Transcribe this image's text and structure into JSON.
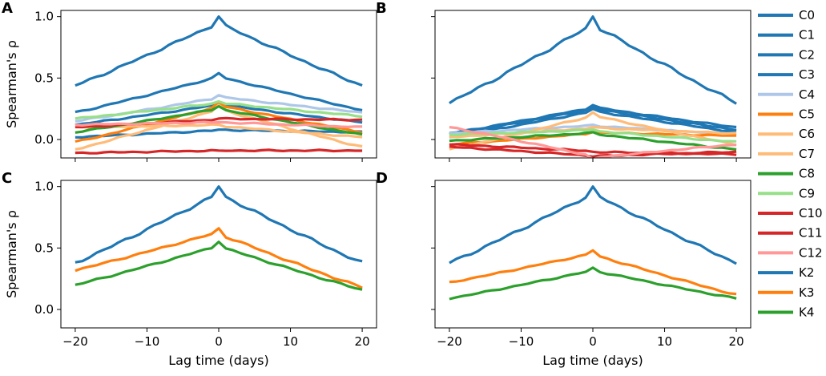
{
  "colors": {
    "blue": "#1f77b4",
    "light_blue": "#aec7e8",
    "orange": "#ff7f0e",
    "light_orange": "#ffbb78",
    "green": "#2ca02c",
    "light_green": "#98df8a",
    "red": "#d62728",
    "pink": "#ff9896"
  },
  "legend": [
    {
      "label": "C0",
      "color": "#1f77b4"
    },
    {
      "label": "C1",
      "color": "#1f77b4"
    },
    {
      "label": "C2",
      "color": "#1f77b4"
    },
    {
      "label": "C3",
      "color": "#1f77b4"
    },
    {
      "label": "C4",
      "color": "#aec7e8"
    },
    {
      "label": "C5",
      "color": "#ff7f0e"
    },
    {
      "label": "C6",
      "color": "#ffbb78"
    },
    {
      "label": "C7",
      "color": "#ffbb78"
    },
    {
      "label": "C8",
      "color": "#2ca02c"
    },
    {
      "label": "C9",
      "color": "#98df8a"
    },
    {
      "label": "C10",
      "color": "#d62728"
    },
    {
      "label": "C11",
      "color": "#d62728"
    },
    {
      "label": "C12",
      "color": "#ff9896"
    },
    {
      "label": "K2",
      "color": "#1f77b4"
    },
    {
      "label": "K3",
      "color": "#ff7f0e"
    },
    {
      "label": "K4",
      "color": "#2ca02c"
    }
  ],
  "chart_data": [
    {
      "panel": "A",
      "type": "line",
      "xlabel": "",
      "ylabel": "Spearman's ρ",
      "xlim": [
        -22,
        22
      ],
      "ylim": [
        -0.15,
        1.05
      ],
      "xticks": [
        -20,
        -10,
        0,
        10,
        20
      ],
      "xtick_labels": [
        "",
        "",
        "",
        "",
        ""
      ],
      "yticks": [
        0.0,
        0.5,
        1.0
      ],
      "ytick_labels": [
        "0.0",
        "0.5",
        "1.0"
      ],
      "series": [
        {
          "name": "C0",
          "color": "#1f77b4",
          "peak": 1.0,
          "left": 0.44,
          "right": 0.44,
          "shape": "peak"
        },
        {
          "name": "C1",
          "color": "#1f77b4",
          "peak": 0.54,
          "left": 0.22,
          "right": 0.24,
          "shape": "peak"
        },
        {
          "name": "C2",
          "color": "#1f77b4",
          "peak": 0.08,
          "left": 0.02,
          "right": 0.06,
          "shape": "peak"
        },
        {
          "name": "C3",
          "color": "#1f77b4",
          "peak": 0.3,
          "left": 0.12,
          "right": 0.14,
          "shape": "peak"
        },
        {
          "name": "C4",
          "color": "#aec7e8",
          "peak": 0.36,
          "left": 0.15,
          "right": 0.22,
          "shape": "peak"
        },
        {
          "name": "C5",
          "color": "#ff7f0e",
          "peak": 0.3,
          "left": -0.02,
          "right": 0.06,
          "shape": "peak"
        },
        {
          "name": "C6",
          "color": "#ffbb78",
          "peak": 0.28,
          "left": -0.08,
          "right": -0.06,
          "shape": "peak"
        },
        {
          "name": "C7",
          "color": "#ffbb78",
          "peak": 0.12,
          "left": 0.1,
          "right": 0.02,
          "shape": "peak"
        },
        {
          "name": "C8",
          "color": "#2ca02c",
          "peak": 0.27,
          "left": 0.06,
          "right": 0.04,
          "shape": "peak"
        },
        {
          "name": "C9",
          "color": "#98df8a",
          "peak": 0.31,
          "left": 0.17,
          "right": 0.19,
          "shape": "peak"
        },
        {
          "name": "C10",
          "color": "#d62728",
          "peak": 0.17,
          "left": 0.1,
          "right": 0.16,
          "shape": "peak"
        },
        {
          "name": "C11",
          "color": "#d62728",
          "peak": -0.09,
          "left": -0.11,
          "right": -0.09,
          "shape": "flat"
        },
        {
          "name": "C12",
          "color": "#ff9896",
          "peak": 0.14,
          "left": 0.12,
          "right": 0.1,
          "shape": "flat"
        }
      ]
    },
    {
      "panel": "B",
      "type": "line",
      "xlabel": "",
      "ylabel": "",
      "xlim": [
        -22,
        22
      ],
      "ylim": [
        -0.15,
        1.05
      ],
      "xticks": [
        -20,
        -10,
        0,
        10,
        20
      ],
      "xtick_labels": [
        "",
        "",
        "",
        "",
        ""
      ],
      "yticks": [
        0.0,
        0.5,
        1.0
      ],
      "ytick_labels": [
        "",
        "",
        ""
      ],
      "series": [
        {
          "name": "C0",
          "color": "#1f77b4",
          "peak": 1.0,
          "left": 0.3,
          "right": 0.3,
          "shape": "peak"
        },
        {
          "name": "C1",
          "color": "#1f77b4",
          "peak": 0.28,
          "left": 0.05,
          "right": 0.1,
          "shape": "peak"
        },
        {
          "name": "C2",
          "color": "#1f77b4",
          "peak": 0.27,
          "left": 0.04,
          "right": 0.08,
          "shape": "peak"
        },
        {
          "name": "C3",
          "color": "#1f77b4",
          "peak": 0.25,
          "left": 0.02,
          "right": 0.06,
          "shape": "peak"
        },
        {
          "name": "C4",
          "color": "#aec7e8",
          "peak": 0.12,
          "left": 0.05,
          "right": 0.04,
          "shape": "peak"
        },
        {
          "name": "C5",
          "color": "#ff7f0e",
          "peak": 0.06,
          "left": -0.04,
          "right": 0.03,
          "shape": "peak"
        },
        {
          "name": "C6",
          "color": "#ffbb78",
          "peak": 0.22,
          "left": -0.08,
          "right": -0.04,
          "shape": "peak"
        },
        {
          "name": "C7",
          "color": "#ffbb78",
          "peak": 0.1,
          "left": 0.02,
          "right": 0.05,
          "shape": "peak"
        },
        {
          "name": "C8",
          "color": "#2ca02c",
          "peak": 0.06,
          "left": -0.01,
          "right": -0.08,
          "shape": "peak"
        },
        {
          "name": "C9",
          "color": "#98df8a",
          "peak": 0.08,
          "left": 0.04,
          "right": -0.02,
          "shape": "peak"
        },
        {
          "name": "C10",
          "color": "#d62728",
          "peak": -0.1,
          "left": -0.04,
          "right": -0.12,
          "shape": "peak"
        },
        {
          "name": "C11",
          "color": "#d62728",
          "peak": -0.14,
          "left": -0.06,
          "right": -0.1,
          "shape": "peak"
        },
        {
          "name": "C12",
          "color": "#ff9896",
          "peak": -0.16,
          "left": 0.1,
          "right": -0.04,
          "shape": "peak"
        }
      ]
    },
    {
      "panel": "C",
      "type": "line",
      "xlabel": "Lag time (days)",
      "ylabel": "Spearman's ρ",
      "xlim": [
        -22,
        22
      ],
      "ylim": [
        -0.15,
        1.05
      ],
      "xticks": [
        -20,
        -10,
        0,
        10,
        20
      ],
      "xtick_labels": [
        "−20",
        "−10",
        "0",
        "10",
        "20"
      ],
      "yticks": [
        0.0,
        0.5,
        1.0
      ],
      "ytick_labels": [
        "0.0",
        "0.5",
        "1.0"
      ],
      "series": [
        {
          "name": "K2",
          "color": "#1f77b4",
          "peak": 1.0,
          "left": 0.38,
          "right": 0.38,
          "shape": "peak"
        },
        {
          "name": "K3",
          "color": "#ff7f0e",
          "peak": 0.66,
          "left": 0.32,
          "right": 0.18,
          "shape": "peak"
        },
        {
          "name": "K4",
          "color": "#2ca02c",
          "peak": 0.55,
          "left": 0.2,
          "right": 0.16,
          "shape": "peak"
        }
      ]
    },
    {
      "panel": "D",
      "type": "line",
      "xlabel": "Lag time (days)",
      "ylabel": "",
      "xlim": [
        -22,
        22
      ],
      "ylim": [
        -0.15,
        1.05
      ],
      "xticks": [
        -20,
        -10,
        0,
        10,
        20
      ],
      "xtick_labels": [
        "−20",
        "−10",
        "0",
        "10",
        "20"
      ],
      "yticks": [
        0.0,
        0.5,
        1.0
      ],
      "ytick_labels": [
        "",
        "",
        ""
      ],
      "series": [
        {
          "name": "K2",
          "color": "#1f77b4",
          "peak": 1.0,
          "left": 0.38,
          "right": 0.38,
          "shape": "peak"
        },
        {
          "name": "K3",
          "color": "#ff7f0e",
          "peak": 0.48,
          "left": 0.22,
          "right": 0.12,
          "shape": "peak"
        },
        {
          "name": "K4",
          "color": "#2ca02c",
          "peak": 0.34,
          "left": 0.09,
          "right": 0.09,
          "shape": "peak"
        }
      ]
    }
  ]
}
